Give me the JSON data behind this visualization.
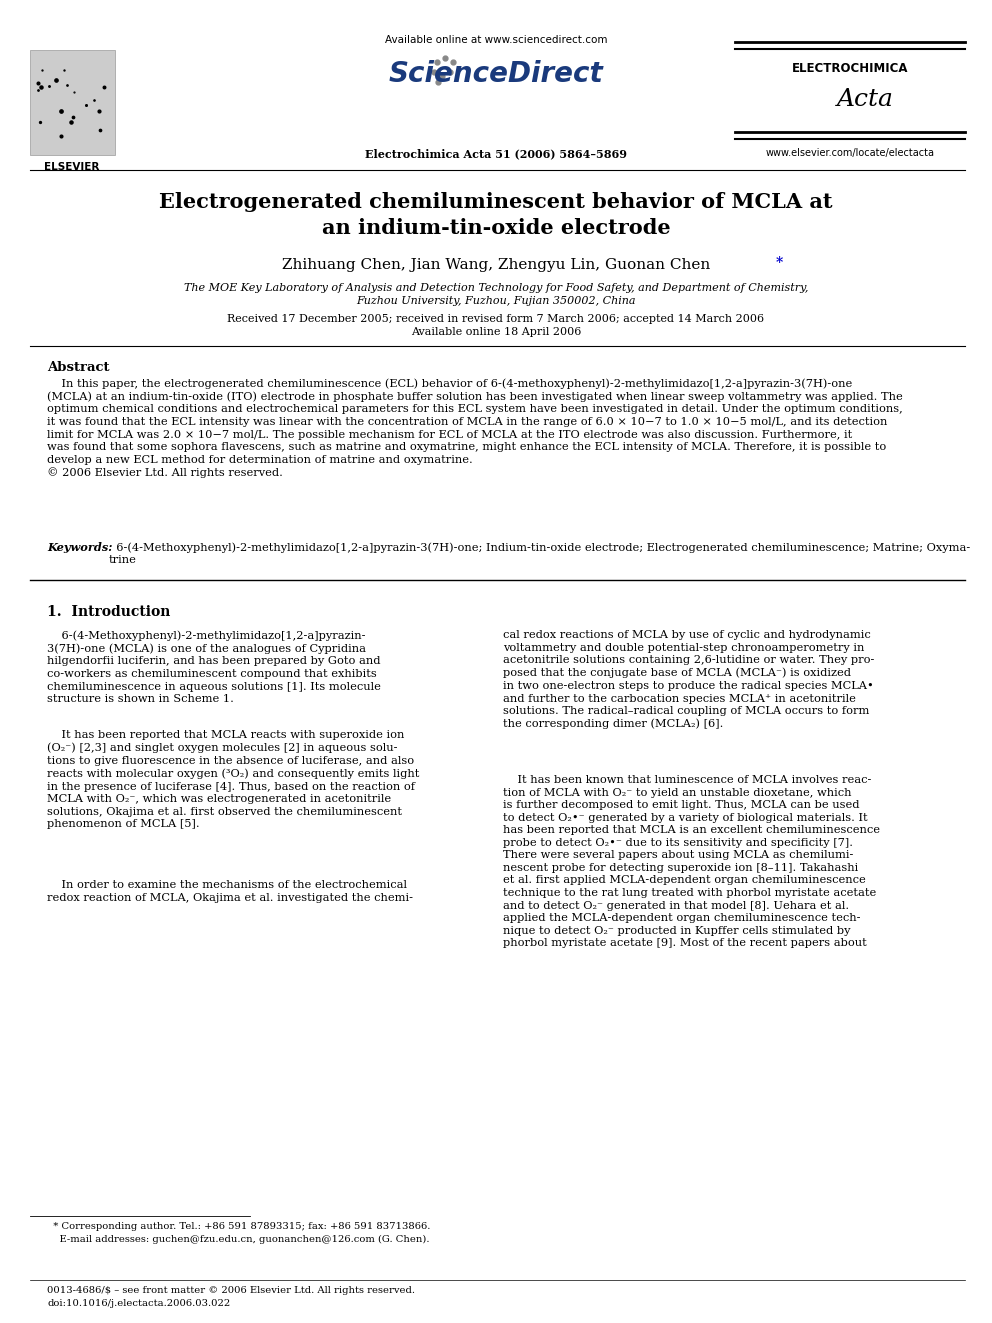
{
  "bg_color": "#ffffff",
  "page_title_line1": "Electrogenerated chemiluminescent behavior of MCLA at",
  "page_title_line2": "an indium-tin-oxide electrode",
  "authors": "Zhihuang Chen, Jian Wang, Zhengyu Lin, Guonan Chen",
  "affiliation_line1": "The MOE Key Laboratory of Analysis and Detection Technology for Food Safety, and Department of Chemistry,",
  "affiliation_line2": "Fuzhou University, Fuzhou, Fujian 350002, China",
  "received_line": "Received 17 December 2005; received in revised form 7 March 2006; accepted 14 March 2006",
  "online_line": "Available online 18 April 2006",
  "header_available": "Available online at www.sciencedirect.com",
  "header_journal": "Electrochimica Acta 51 (2006) 5864–5869",
  "header_website": "www.elsevier.com/locate/electacta",
  "elsevier_text": "ELSEVIER",
  "journal_name_top": "ELECTROCHIMICA",
  "journal_name_italic": "Acta",
  "abstract_title": "Abstract",
  "abstract_body": "    In this paper, the electrogenerated chemiluminescence (ECL) behavior of 6-(4-methoxyphenyl)-2-methylimidazo[1,2-a]pyrazin-3(7H)-one\n(MCLA) at an indium-tin-oxide (ITO) electrode in phosphate buffer solution has been investigated when linear sweep voltammetry was applied. The\noptimum chemical conditions and electrochemical parameters for this ECL system have been investigated in detail. Under the optimum conditions,\nit was found that the ECL intensity was linear with the concentration of MCLA in the range of 6.0 × 10−7 to 1.0 × 10−5 mol/L, and its detection\nlimit for MCLA was 2.0 × 10−7 mol/L. The possible mechanism for ECL of MCLA at the ITO electrode was also discussion. Furthermore, it\nwas found that some sophora flavescens, such as matrine and oxymatrine, might enhance the ECL intensity of MCLA. Therefore, it is possible to\ndevelop a new ECL method for determination of matrine and oxymatrine.\n© 2006 Elsevier Ltd. All rights reserved.",
  "keywords_label": "Keywords:",
  "keywords_body": "  6-(4-Methoxyphenyl)-2-methylimidazo[1,2-a]pyrazin-3(7H)-one; Indium-tin-oxide electrode; Electrogenerated chemiluminescence; Matrine; Oxyma-\ntrine",
  "section1_title": "1.  Introduction",
  "intro_left_p1": "    6-(4-Methoxyphenyl)-2-methylimidazo[1,2-a]pyrazin-\n3(7H)-one (MCLA) is one of the analogues of Cypridina\nhilgendorfii luciferin, and has been prepared by Goto and\nco-workers as chemiluminescent compound that exhibits\nchemiluminescence in aqueous solutions [1]. Its molecule\nstructure is shown in Scheme 1.",
  "intro_left_p2": "    It has been reported that MCLA reacts with superoxide ion\n(O₂⁻) [2,3] and singlet oxygen molecules [2] in aqueous solu-\ntions to give fluorescence in the absence of luciferase, and also\nreacts with molecular oxygen (³O₂) and consequently emits light\nin the presence of luciferase [4]. Thus, based on the reaction of\nMCLA with O₂⁻, which was electrogenerated in acetonitrile\nsolutions, Okajima et al. first observed the chemiluminescent\nphenomenon of MCLA [5].",
  "intro_left_p3": "    In order to examine the mechanisms of the electrochemical\nredox reaction of MCLA, Okajima et al. investigated the chemi-",
  "intro_right_p1": "cal redox reactions of MCLA by use of cyclic and hydrodynamic\nvoltammetry and double potential-step chronoamperometry in\nacetonitrile solutions containing 2,6-lutidine or water. They pro-\nposed that the conjugate base of MCLA (MCLA⁻) is oxidized\nin two one-electron steps to produce the radical species MCLA•\nand further to the carbocation species MCLA⁺ in acetonitrile\nsolutions. The radical–radical coupling of MCLA occurs to form\nthe corresponding dimer (MCLA₂) [6].",
  "intro_right_p2": "    It has been known that luminescence of MCLA involves reac-\ntion of MCLA with O₂⁻ to yield an unstable dioxetane, which\nis further decomposed to emit light. Thus, MCLA can be used\nto detect O₂•⁻ generated by a variety of biological materials. It\nhas been reported that MCLA is an excellent chemiluminescence\nprobe to detect O₂•⁻ due to its sensitivity and specificity [7].\nThere were several papers about using MCLA as chemilumi-\nnescent probe for detecting superoxide ion [8–11]. Takahashi\net al. first applied MCLA-dependent organ chemiluminescence\ntechnique to the rat lung treated with phorbol myristate acetate\nand to detect O₂⁻ generated in that model [8]. Uehara et al.\napplied the MCLA-dependent organ chemiluminescence tech-\nnique to detect O₂⁻ producted in Kupffer cells stimulated by\nphorbol myristate acetate [9]. Most of the recent papers about",
  "footnote_line1": "  * Corresponding author. Tel.: +86 591 87893315; fax: +86 591 83713866.",
  "footnote_line2": "    E-mail addresses: guchen@fzu.edu.cn, guonanchen@126.com (G. Chen).",
  "footer_line1": "0013-4686/$ – see front matter © 2006 Elsevier Ltd. All rights reserved.",
  "footer_line2": "doi:10.1016/j.electacta.2006.03.022"
}
